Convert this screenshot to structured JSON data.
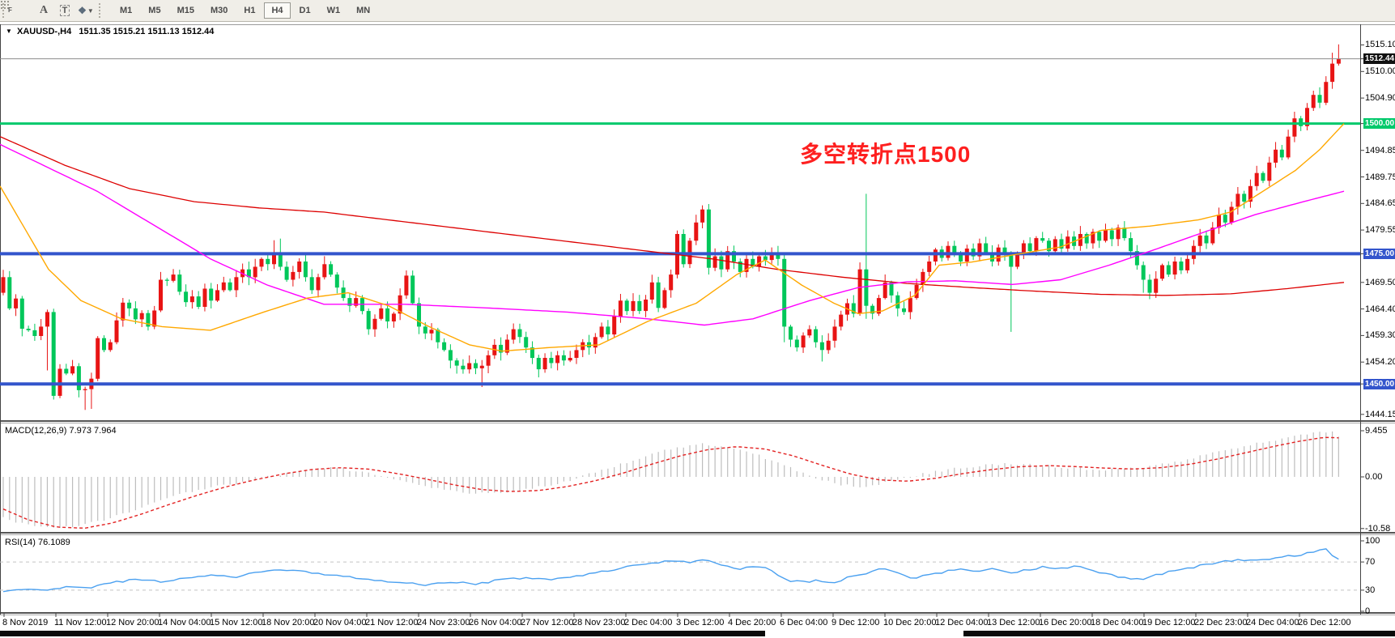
{
  "toolbar": {
    "tools": [
      {
        "name": "crosshair-grid-tool",
        "glyph": "F"
      },
      {
        "name": "text-annotation-tool",
        "glyph": "A"
      },
      {
        "name": "text-label-tool",
        "glyph": "T"
      },
      {
        "name": "arrows-objects-tool",
        "glyph": "arrows"
      }
    ],
    "timeframes": [
      "M1",
      "M5",
      "M15",
      "M30",
      "H1",
      "H4",
      "D1",
      "W1",
      "MN"
    ],
    "active_timeframe": "H4"
  },
  "chart": {
    "symbol_label": "XAUUSD-,H4",
    "ohlc_text": "1511.35 1515.21 1511.13 1512.44"
  },
  "annotation": {
    "text": "多空转折点1500",
    "color": "#fe1f1f"
  },
  "indicators": {
    "macd": {
      "label": "MACD(12,26,9) 7.973 7.964",
      "ticks": [
        9.455,
        0.0,
        -10.58
      ],
      "tick_labels": [
        "9.455",
        "0.00",
        "-10.58"
      ]
    },
    "rsi": {
      "label": "RSI(14) 76.1089",
      "ticks": [
        100,
        70,
        30,
        0
      ],
      "tick_labels": [
        "100",
        "70",
        "30",
        "0"
      ],
      "levels": [
        70,
        30
      ]
    }
  },
  "price_axis": {
    "ticks": [
      1515.1,
      1510.0,
      1504.9,
      1494.85,
      1489.75,
      1484.65,
      1479.55,
      1469.5,
      1464.4,
      1459.3,
      1454.2,
      1444.15
    ],
    "badges": [
      {
        "label": "1512.44",
        "price": 1512.44,
        "bg": "#111111"
      },
      {
        "label": "1500.00",
        "price": 1500.0,
        "bg": "#00c96b"
      },
      {
        "label": "1475.00",
        "price": 1475.0,
        "bg": "#3355cc"
      },
      {
        "label": "1450.00",
        "price": 1450.0,
        "bg": "#3355cc"
      }
    ]
  },
  "time_axis": [
    "8 Nov 2019",
    "11 Nov 12:00",
    "12 Nov 20:00",
    "14 Nov 04:00",
    "15 Nov 12:00",
    "18 Nov 20:00",
    "20 Nov 04:00",
    "21 Nov 12:00",
    "24 Nov 23:00",
    "26 Nov 04:00",
    "27 Nov 12:00",
    "28 Nov 23:00",
    "2 Dec 04:00",
    "3 Dec 12:00",
    "4 Dec 20:00",
    "6 Dec 04:00",
    "9 Dec 12:00",
    "10 Dec 20:00",
    "12 Dec 04:00",
    "13 Dec 12:00",
    "16 Dec 20:00",
    "18 Dec 04:00",
    "19 Dec 12:00",
    "22 Dec 23:00",
    "24 Dec 04:00",
    "26 Dec 12:00"
  ],
  "chart_data": {
    "type": "candlestick",
    "symbol": "XAUUSD",
    "timeframe": "H4",
    "last_bar": {
      "open": 1511.35,
      "high": 1515.21,
      "low": 1511.13,
      "close": 1512.44
    },
    "price_range_visible": [
      1444.15,
      1515.1
    ],
    "levels": [
      {
        "price": 1512.44,
        "color": "#8b8b8b",
        "width": 1,
        "role": "bid-line"
      },
      {
        "price": 1500.0,
        "color": "#00c96b",
        "width": 3,
        "role": "support-resistance"
      },
      {
        "price": 1475.0,
        "color": "#3355cc",
        "width": 4,
        "role": "support-resistance"
      },
      {
        "price": 1450.0,
        "color": "#3355cc",
        "width": 4,
        "role": "support-resistance"
      }
    ],
    "colors": {
      "bull": "#e81414",
      "bear": "#00c75a",
      "ma_fast": "#ffa800",
      "ma_mid": "#ff00ff",
      "ma_slow": "#dd0000",
      "macd_hist": "#bdbdbd",
      "macd_signal": "#e32222",
      "rsi": "#4aa0f0"
    },
    "closes": [
      1470.5,
      1464.5,
      1466.4,
      1460.6,
      1460.3,
      1459.2,
      1461,
      1463.8,
      1447.7,
      1452.9,
      1452,
      1453.4,
      1448.8,
      1449,
      1451,
      1458.8,
      1456.5,
      1458,
      1462.2,
      1465.6,
      1464.5,
      1462.4,
      1463.6,
      1461,
      1464.1,
      1470,
      1469.8,
      1471,
      1467.7,
      1465.7,
      1466.8,
      1464.8,
      1468.3,
      1466,
      1468,
      1469.5,
      1468,
      1470.5,
      1472,
      1470.5,
      1472.5,
      1474,
      1473,
      1474.8,
      1472.5,
      1470,
      1471.5,
      1473.5,
      1470.5,
      1468,
      1470.5,
      1473,
      1471,
      1468.5,
      1466.5,
      1465,
      1466.5,
      1464,
      1460.5,
      1462.5,
      1464.5,
      1462,
      1463.5,
      1467,
      1470.8,
      1465.5,
      1461,
      1459.7,
      1460.4,
      1458,
      1456.5,
      1454.5,
      1453.5,
      1452.8,
      1454,
      1453,
      1453.5,
      1455.5,
      1457.5,
      1456,
      1458.5,
      1460.5,
      1459,
      1457,
      1455,
      1452.8,
      1455,
      1454,
      1455.5,
      1454.5,
      1455,
      1456.5,
      1458,
      1457,
      1459,
      1461,
      1459.5,
      1463,
      1466,
      1464,
      1465.9,
      1464,
      1466.2,
      1469.5,
      1464.6,
      1468,
      1471,
      1478.8,
      1473,
      1477.5,
      1481,
      1483.5,
      1472.3,
      1474.5,
      1472,
      1475.5,
      1473.5,
      1471.5,
      1474,
      1472.5,
      1474.5,
      1473.8,
      1475.2,
      1474,
      1461,
      1458.5,
      1457,
      1459.3,
      1460.5,
      1458,
      1456.5,
      1458.3,
      1461,
      1463.3,
      1465.5,
      1463.5,
      1472,
      1465,
      1463.5,
      1466.5,
      1469.5,
      1467,
      1464.5,
      1463.8,
      1466.5,
      1469,
      1471.5,
      1473.5,
      1475.8,
      1474.2,
      1476.5,
      1475,
      1473.5,
      1476,
      1474.5,
      1477,
      1475.2,
      1473.5,
      1476.2,
      1474.8,
      1472.5,
      1475,
      1477,
      1475.5,
      1478,
      1477.5,
      1475.5,
      1477.8,
      1476,
      1478.3,
      1476.5,
      1478.8,
      1477,
      1479.2,
      1477.5,
      1479.5,
      1477.8,
      1480,
      1478,
      1475.5,
      1472.8,
      1470,
      1467.5,
      1470.2,
      1472.8,
      1471,
      1473.5,
      1471.8,
      1474,
      1476.5,
      1478.5,
      1477,
      1480,
      1482.5,
      1481,
      1484,
      1486.5,
      1485,
      1488,
      1490.5,
      1489,
      1492.5,
      1495,
      1493.5,
      1497.5,
      1501,
      1499.5,
      1503,
      1505.5,
      1504,
      1508,
      1511.5,
      1512.44
    ],
    "first_open": 1467.5,
    "wick_overrides": {
      "7": {
        "lo": 1452.6
      },
      "8": {
        "lo": 1447
      },
      "13": {
        "lo": 1445
      },
      "14": {
        "lo": 1445.2
      },
      "43": {
        "hi": 1477.6
      },
      "44": {
        "hi": 1477.9
      },
      "76": {
        "lo": 1449.4
      },
      "111": {
        "hi": 1484.3
      },
      "112": {
        "lo": 1471
      },
      "124": {
        "lo": 1458
      },
      "130": {
        "lo": 1454.3
      },
      "137": {
        "hi": 1486.5,
        "lo": 1462.5
      },
      "160": {
        "lo": 1460
      },
      "181": {
        "lo": 1467.5
      },
      "211": {
        "hi": 1513.6
      },
      "212": {
        "hi": 1515.21,
        "lo": 1511.13
      }
    },
    "ma_fast_anchors": [
      [
        0,
        1488
      ],
      [
        30,
        1480
      ],
      [
        60,
        1472
      ],
      [
        100,
        1466
      ],
      [
        150,
        1462.5
      ],
      [
        200,
        1461
      ],
      [
        260,
        1460.3
      ],
      [
        320,
        1463.5
      ],
      [
        380,
        1466.5
      ],
      [
        430,
        1467.5
      ],
      [
        480,
        1465
      ],
      [
        530,
        1461
      ],
      [
        580,
        1457.5
      ],
      [
        620,
        1456.3
      ],
      [
        680,
        1457
      ],
      [
        740,
        1457.5
      ],
      [
        800,
        1462
      ],
      [
        860,
        1465.5
      ],
      [
        910,
        1471
      ],
      [
        945,
        1473.8
      ],
      [
        990,
        1469
      ],
      [
        1030,
        1465.5
      ],
      [
        1060,
        1463.5
      ],
      [
        1090,
        1464
      ],
      [
        1130,
        1467
      ],
      [
        1160,
        1472.8
      ],
      [
        1200,
        1473.4
      ],
      [
        1260,
        1475
      ],
      [
        1310,
        1476.3
      ],
      [
        1360,
        1479.5
      ],
      [
        1420,
        1480.3
      ],
      [
        1480,
        1481.5
      ],
      [
        1520,
        1483
      ],
      [
        1560,
        1487
      ],
      [
        1600,
        1491
      ],
      [
        1630,
        1495
      ],
      [
        1660,
        1500
      ]
    ],
    "ma_mid_anchors": [
      [
        0,
        1496
      ],
      [
        60,
        1491.5
      ],
      [
        120,
        1487
      ],
      [
        190,
        1480.5
      ],
      [
        260,
        1474
      ],
      [
        330,
        1469
      ],
      [
        400,
        1465.3
      ],
      [
        500,
        1465.3
      ],
      [
        600,
        1464.6
      ],
      [
        700,
        1463.8
      ],
      [
        800,
        1462.5
      ],
      [
        870,
        1461.3
      ],
      [
        930,
        1462.5
      ],
      [
        1000,
        1466
      ],
      [
        1060,
        1468.5
      ],
      [
        1120,
        1469.6
      ],
      [
        1180,
        1469.8
      ],
      [
        1250,
        1469.1
      ],
      [
        1310,
        1470
      ],
      [
        1370,
        1472.8
      ],
      [
        1430,
        1476
      ],
      [
        1490,
        1479.3
      ],
      [
        1550,
        1482.5
      ],
      [
        1610,
        1485
      ],
      [
        1660,
        1487
      ]
    ],
    "ma_slow_anchors": [
      [
        0,
        1497.5
      ],
      [
        80,
        1492
      ],
      [
        160,
        1487.5
      ],
      [
        240,
        1485
      ],
      [
        320,
        1483.8
      ],
      [
        400,
        1483
      ],
      [
        480,
        1481.5
      ],
      [
        560,
        1480
      ],
      [
        640,
        1478.5
      ],
      [
        720,
        1477
      ],
      [
        800,
        1475.5
      ],
      [
        880,
        1474
      ],
      [
        960,
        1472
      ],
      [
        1040,
        1470.5
      ],
      [
        1120,
        1469.3
      ],
      [
        1200,
        1468.5
      ],
      [
        1280,
        1467.8
      ],
      [
        1360,
        1467.2
      ],
      [
        1440,
        1467
      ],
      [
        1520,
        1467.3
      ],
      [
        1590,
        1468.3
      ],
      [
        1660,
        1469.5
      ]
    ],
    "macd_anchors": [
      [
        0,
        -8
      ],
      [
        30,
        -9.8
      ],
      [
        64,
        -10.5
      ],
      [
        95,
        -10.2
      ],
      [
        130,
        -8.8
      ],
      [
        165,
        -6.8
      ],
      [
        200,
        -4.8
      ],
      [
        235,
        -3
      ],
      [
        270,
        -1.8
      ],
      [
        305,
        -1
      ],
      [
        340,
        0.3
      ],
      [
        375,
        1.3
      ],
      [
        410,
        1.9
      ],
      [
        445,
        1.1
      ],
      [
        480,
        -0.3
      ],
      [
        515,
        -1.6
      ],
      [
        550,
        -2.8
      ],
      [
        585,
        -3.5
      ],
      [
        620,
        -3.2
      ],
      [
        655,
        -2.4
      ],
      [
        690,
        -1.3
      ],
      [
        725,
        0.4
      ],
      [
        760,
        2.2
      ],
      [
        795,
        4.2
      ],
      [
        830,
        5.8
      ],
      [
        865,
        6.7
      ],
      [
        895,
        6.3
      ],
      [
        930,
        4.8
      ],
      [
        965,
        2.6
      ],
      [
        1000,
        0.2
      ],
      [
        1035,
        -1.6
      ],
      [
        1065,
        -2
      ],
      [
        1100,
        -1
      ],
      [
        1135,
        0.4
      ],
      [
        1170,
        1.5
      ],
      [
        1205,
        2.2
      ],
      [
        1240,
        2.6
      ],
      [
        1275,
        2.5
      ],
      [
        1310,
        2
      ],
      [
        1345,
        1.6
      ],
      [
        1380,
        1.5
      ],
      [
        1415,
        2
      ],
      [
        1450,
        3
      ],
      [
        1485,
        4.3
      ],
      [
        1520,
        5.6
      ],
      [
        1555,
        6.9
      ],
      [
        1590,
        8
      ],
      [
        1612,
        8.8
      ],
      [
        1630,
        9.45
      ],
      [
        1645,
        9.1
      ],
      [
        1660,
        7.97
      ]
    ],
    "signal_anchors": [
      [
        0,
        -6.3
      ],
      [
        35,
        -8.8
      ],
      [
        70,
        -10.3
      ],
      [
        105,
        -10.5
      ],
      [
        140,
        -9.4
      ],
      [
        175,
        -7.6
      ],
      [
        210,
        -5.6
      ],
      [
        245,
        -3.7
      ],
      [
        280,
        -2
      ],
      [
        315,
        -0.6
      ],
      [
        350,
        0.6
      ],
      [
        385,
        1.5
      ],
      [
        420,
        1.9
      ],
      [
        455,
        1.6
      ],
      [
        490,
        0.7
      ],
      [
        525,
        -0.4
      ],
      [
        560,
        -1.6
      ],
      [
        595,
        -2.6
      ],
      [
        630,
        -3
      ],
      [
        665,
        -2.8
      ],
      [
        700,
        -2
      ],
      [
        735,
        -0.8
      ],
      [
        770,
        0.8
      ],
      [
        805,
        2.6
      ],
      [
        840,
        4.3
      ],
      [
        875,
        5.6
      ],
      [
        910,
        6.2
      ],
      [
        945,
        5.7
      ],
      [
        980,
        4.3
      ],
      [
        1015,
        2.4
      ],
      [
        1050,
        0.6
      ],
      [
        1085,
        -0.6
      ],
      [
        1120,
        -0.9
      ],
      [
        1155,
        -0.3
      ],
      [
        1190,
        0.7
      ],
      [
        1225,
        1.5
      ],
      [
        1260,
        2.1
      ],
      [
        1295,
        2.3
      ],
      [
        1330,
        2.1
      ],
      [
        1365,
        1.8
      ],
      [
        1400,
        1.6
      ],
      [
        1435,
        1.9
      ],
      [
        1470,
        2.6
      ],
      [
        1505,
        3.7
      ],
      [
        1540,
        5
      ],
      [
        1575,
        6.3
      ],
      [
        1605,
        7.3
      ],
      [
        1635,
        8.1
      ],
      [
        1660,
        7.96
      ]
    ],
    "rsi_anchors": [
      [
        0,
        27
      ],
      [
        30,
        32
      ],
      [
        55,
        29
      ],
      [
        85,
        35
      ],
      [
        110,
        33
      ],
      [
        140,
        41
      ],
      [
        170,
        45
      ],
      [
        200,
        42
      ],
      [
        230,
        47
      ],
      [
        260,
        52
      ],
      [
        290,
        49
      ],
      [
        320,
        55
      ],
      [
        350,
        59
      ],
      [
        380,
        56
      ],
      [
        410,
        51
      ],
      [
        440,
        47
      ],
      [
        470,
        44
      ],
      [
        500,
        40
      ],
      [
        530,
        37
      ],
      [
        560,
        42
      ],
      [
        590,
        39
      ],
      [
        620,
        45
      ],
      [
        650,
        48
      ],
      [
        680,
        46
      ],
      [
        710,
        50
      ],
      [
        740,
        55
      ],
      [
        770,
        62
      ],
      [
        800,
        68
      ],
      [
        830,
        72
      ],
      [
        850,
        69
      ],
      [
        870,
        73
      ],
      [
        890,
        66
      ],
      [
        910,
        60
      ],
      [
        930,
        63
      ],
      [
        950,
        60
      ],
      [
        970,
        45
      ],
      [
        990,
        41
      ],
      [
        1010,
        44
      ],
      [
        1030,
        40
      ],
      [
        1050,
        49
      ],
      [
        1070,
        54
      ],
      [
        1090,
        60
      ],
      [
        1110,
        53
      ],
      [
        1130,
        47
      ],
      [
        1150,
        52
      ],
      [
        1170,
        57
      ],
      [
        1190,
        60
      ],
      [
        1210,
        57
      ],
      [
        1230,
        61
      ],
      [
        1250,
        55
      ],
      [
        1270,
        59
      ],
      [
        1290,
        63
      ],
      [
        1310,
        61
      ],
      [
        1330,
        64
      ],
      [
        1350,
        58
      ],
      [
        1370,
        52
      ],
      [
        1390,
        48
      ],
      [
        1410,
        45
      ],
      [
        1430,
        52
      ],
      [
        1450,
        58
      ],
      [
        1470,
        62
      ],
      [
        1490,
        66
      ],
      [
        1510,
        70
      ],
      [
        1530,
        73
      ],
      [
        1550,
        71
      ],
      [
        1570,
        75
      ],
      [
        1590,
        78
      ],
      [
        1610,
        81
      ],
      [
        1625,
        85
      ],
      [
        1638,
        88
      ],
      [
        1645,
        80
      ],
      [
        1650,
        73
      ],
      [
        1655,
        75
      ],
      [
        1660,
        76.1
      ]
    ]
  }
}
